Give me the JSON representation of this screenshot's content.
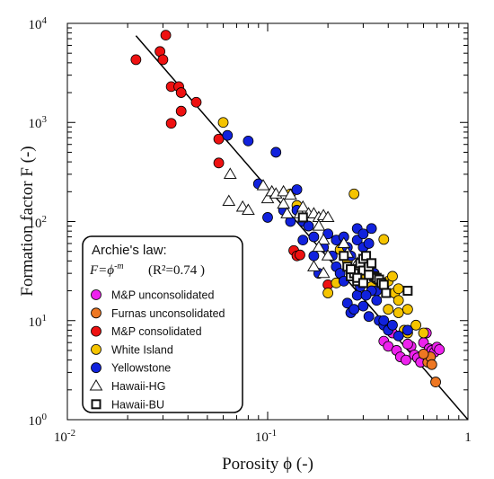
{
  "chart_data": {
    "type": "scatter",
    "xlabel": "Porosity ϕ (-)",
    "ylabel": "Formation factor F (-)",
    "xscale": "log",
    "yscale": "log",
    "xlim": [
      0.01,
      1
    ],
    "ylim": [
      1,
      10000
    ],
    "x_ticks": [
      "10",
      "10",
      "1"
    ],
    "x_ticks_exp": [
      "-2",
      "-1",
      ""
    ],
    "y_ticks": [
      "10",
      "10",
      "10",
      "10",
      "10"
    ],
    "y_ticks_exp": [
      "0",
      "1",
      "2",
      "3",
      "4"
    ],
    "legend": {
      "placement": "lower-left",
      "title": "Archie's law:",
      "equation": "F=ϕ-m",
      "equation_base": "F=ϕ",
      "equation_exp": "-m",
      "r2": "(R²=0.74 )"
    },
    "fit_line": {
      "name": "Archie's law",
      "x": [
        0.022,
        1.0
      ],
      "y": [
        7500,
        1.0
      ],
      "color": "#000000"
    },
    "series": [
      {
        "name": "M&P unconsolidated",
        "marker": "circle",
        "color": "#ee22ee",
        "points": [
          [
            0.38,
            6.2
          ],
          [
            0.4,
            5.5
          ],
          [
            0.42,
            7.5
          ],
          [
            0.44,
            5
          ],
          [
            0.46,
            4.3
          ],
          [
            0.49,
            4
          ],
          [
            0.52,
            5.5
          ],
          [
            0.54,
            4.5
          ],
          [
            0.56,
            4.2
          ],
          [
            0.58,
            3.8
          ],
          [
            0.6,
            6
          ],
          [
            0.62,
            7.5
          ],
          [
            0.64,
            5.2
          ],
          [
            0.66,
            5
          ],
          [
            0.68,
            4.8
          ],
          [
            0.7,
            5.4
          ],
          [
            0.72,
            5.1
          ],
          [
            0.5,
            5.8
          ]
        ]
      },
      {
        "name": "Furnas unconsolidated",
        "marker": "circle",
        "color": "#ee7722",
        "points": [
          [
            0.63,
            3.8
          ],
          [
            0.65,
            4.3
          ],
          [
            0.69,
            2.4
          ],
          [
            0.66,
            3.6
          ],
          [
            0.6,
            4.6
          ]
        ]
      },
      {
        "name": "M&P consolidated",
        "marker": "circle",
        "color": "#ee1111",
        "points": [
          [
            0.022,
            4300
          ],
          [
            0.029,
            5200
          ],
          [
            0.03,
            4300
          ],
          [
            0.031,
            7600
          ],
          [
            0.033,
            2300
          ],
          [
            0.036,
            2300
          ],
          [
            0.037,
            2000
          ],
          [
            0.037,
            1300
          ],
          [
            0.033,
            980
          ],
          [
            0.044,
            1600
          ],
          [
            0.057,
            680
          ],
          [
            0.057,
            390
          ],
          [
            0.135,
            51
          ],
          [
            0.14,
            45
          ],
          [
            0.145,
            46
          ],
          [
            0.2,
            23
          ]
        ]
      },
      {
        "name": "White Island",
        "marker": "circle",
        "color": "#f5c400",
        "points": [
          [
            0.06,
            1000
          ],
          [
            0.13,
            190
          ],
          [
            0.14,
            145
          ],
          [
            0.27,
            190
          ],
          [
            0.38,
            66
          ],
          [
            0.23,
            52
          ],
          [
            0.25,
            40
          ],
          [
            0.34,
            30
          ],
          [
            0.38,
            22
          ],
          [
            0.4,
            25
          ],
          [
            0.42,
            28
          ],
          [
            0.43,
            19
          ],
          [
            0.45,
            16
          ],
          [
            0.4,
            13
          ],
          [
            0.45,
            12
          ],
          [
            0.5,
            13
          ],
          [
            0.48,
            8
          ],
          [
            0.5,
            7.5
          ],
          [
            0.55,
            9
          ],
          [
            0.6,
            7.5
          ],
          [
            0.2,
            19
          ],
          [
            0.22,
            24
          ],
          [
            0.3,
            26
          ],
          [
            0.33,
            22
          ],
          [
            0.45,
            21
          ],
          [
            0.35,
            26
          ]
        ]
      },
      {
        "name": "Yellowstone",
        "marker": "circle",
        "color": "#1122dd",
        "points": [
          [
            0.063,
            740
          ],
          [
            0.08,
            650
          ],
          [
            0.11,
            500
          ],
          [
            0.09,
            240
          ],
          [
            0.1,
            110
          ],
          [
            0.12,
            130
          ],
          [
            0.13,
            100
          ],
          [
            0.14,
            130
          ],
          [
            0.14,
            210
          ],
          [
            0.15,
            100
          ],
          [
            0.15,
            65
          ],
          [
            0.16,
            90
          ],
          [
            0.17,
            70
          ],
          [
            0.17,
            45
          ],
          [
            0.18,
            30
          ],
          [
            0.19,
            55
          ],
          [
            0.2,
            75
          ],
          [
            0.21,
            45
          ],
          [
            0.22,
            35
          ],
          [
            0.22,
            65
          ],
          [
            0.23,
            30
          ],
          [
            0.24,
            70
          ],
          [
            0.25,
            55
          ],
          [
            0.26,
            45
          ],
          [
            0.27,
            30
          ],
          [
            0.28,
            85
          ],
          [
            0.28,
            65
          ],
          [
            0.3,
            75
          ],
          [
            0.3,
            55
          ],
          [
            0.3,
            40
          ],
          [
            0.31,
            35
          ],
          [
            0.32,
            60
          ],
          [
            0.33,
            85
          ],
          [
            0.34,
            30
          ],
          [
            0.35,
            20
          ],
          [
            0.25,
            15
          ],
          [
            0.26,
            12
          ],
          [
            0.3,
            14
          ],
          [
            0.32,
            11
          ],
          [
            0.36,
            10
          ],
          [
            0.38,
            9
          ],
          [
            0.4,
            8
          ],
          [
            0.33,
            20
          ],
          [
            0.35,
            16
          ],
          [
            0.28,
            18
          ],
          [
            0.38,
            10
          ],
          [
            0.42,
            9
          ],
          [
            0.45,
            7
          ],
          [
            0.5,
            8
          ],
          [
            0.24,
            25
          ],
          [
            0.29,
            22
          ],
          [
            0.27,
            13
          ],
          [
            0.31,
            18
          ]
        ]
      },
      {
        "name": "Hawaii-HG",
        "marker": "triangle",
        "color": "#111111",
        "points": [
          [
            0.065,
            300
          ],
          [
            0.064,
            160
          ],
          [
            0.075,
            140
          ],
          [
            0.08,
            130
          ],
          [
            0.095,
            230
          ],
          [
            0.1,
            170
          ],
          [
            0.105,
            200
          ],
          [
            0.11,
            190
          ],
          [
            0.12,
            200
          ],
          [
            0.12,
            150
          ],
          [
            0.125,
            120
          ],
          [
            0.13,
            185
          ],
          [
            0.145,
            120
          ],
          [
            0.15,
            140
          ],
          [
            0.16,
            120
          ],
          [
            0.17,
            120
          ],
          [
            0.18,
            110
          ],
          [
            0.18,
            90
          ],
          [
            0.19,
            115
          ],
          [
            0.2,
            110
          ],
          [
            0.19,
            65
          ],
          [
            0.2,
            45
          ],
          [
            0.17,
            35
          ],
          [
            0.18,
            55
          ],
          [
            0.24,
            60
          ],
          [
            0.25,
            48
          ],
          [
            0.28,
            38
          ],
          [
            0.3,
            35
          ],
          [
            0.19,
            30
          ]
        ]
      },
      {
        "name": "Hawaii-BU",
        "marker": "square",
        "color": "#111111",
        "points": [
          [
            0.15,
            110
          ],
          [
            0.24,
            45
          ],
          [
            0.25,
            35
          ],
          [
            0.26,
            28
          ],
          [
            0.27,
            30
          ],
          [
            0.28,
            25
          ],
          [
            0.29,
            38
          ],
          [
            0.3,
            32
          ],
          [
            0.3,
            42
          ],
          [
            0.31,
            45
          ],
          [
            0.32,
            35
          ],
          [
            0.33,
            38
          ],
          [
            0.34,
            28
          ],
          [
            0.35,
            27
          ],
          [
            0.36,
            26
          ],
          [
            0.37,
            24
          ],
          [
            0.38,
            23
          ],
          [
            0.39,
            19
          ],
          [
            0.5,
            20
          ],
          [
            0.28,
            27
          ],
          [
            0.3,
            24
          ],
          [
            0.26,
            33
          ],
          [
            0.32,
            29
          ]
        ]
      }
    ]
  }
}
